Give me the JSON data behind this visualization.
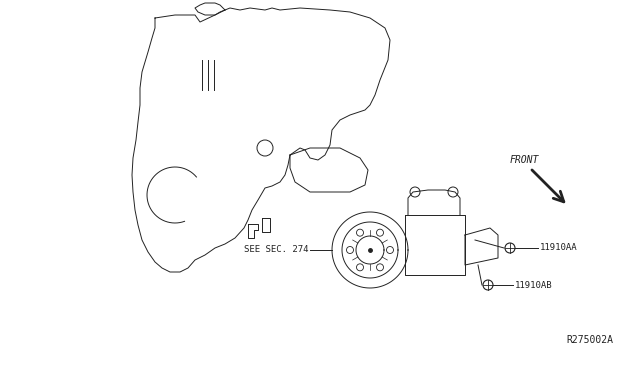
{
  "bg_color": "#ffffff",
  "line_color": "#222222",
  "diagram_ref": "R275002A",
  "labels": {
    "see_sec": "SEE SEC. 274",
    "part1": "11910AA",
    "part2": "11910AB",
    "front": "FRONT"
  },
  "figsize": [
    6.4,
    3.72
  ],
  "dpi": 100
}
